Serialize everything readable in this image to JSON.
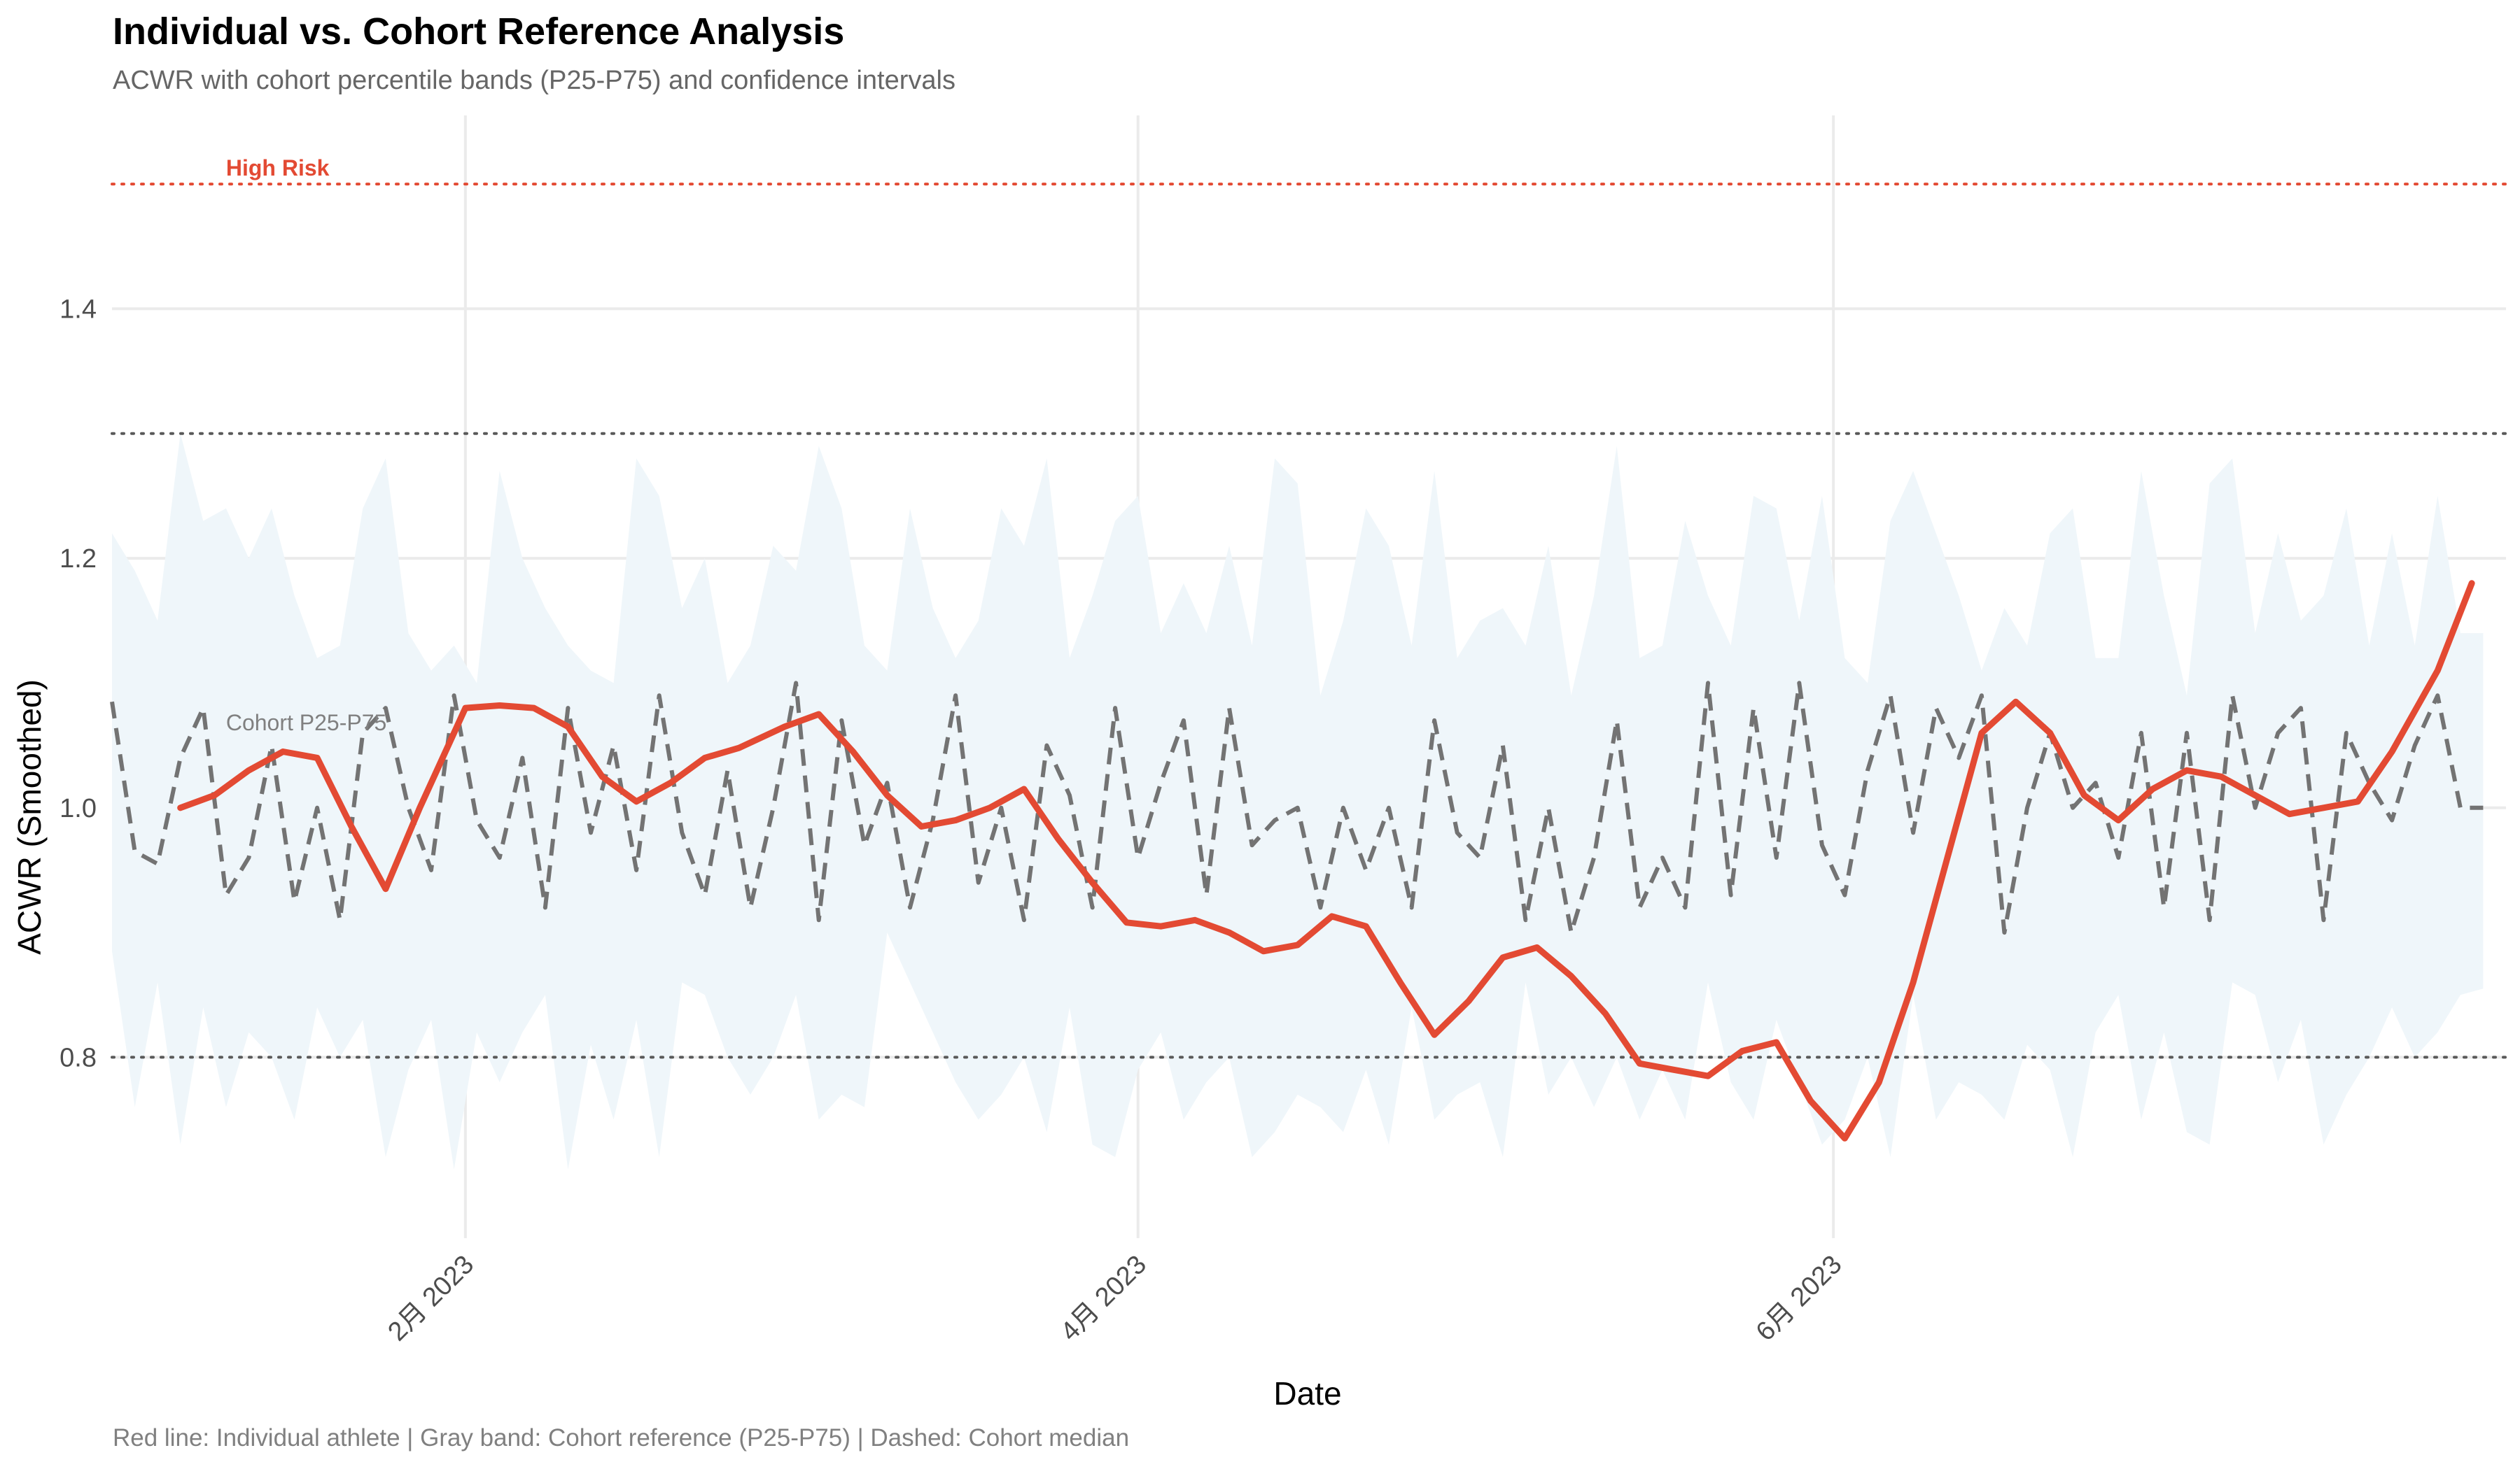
{
  "title": "Individual vs. Cohort Reference Analysis",
  "subtitle": "ACWR with cohort percentile bands (P25-P75) and confidence intervals",
  "caption": "Red line: Individual athlete | Gray band: Cohort reference (P25-P75) | Dashed: Cohort median",
  "colors": {
    "individual": "#e34a33",
    "median": "#737373",
    "band": "#eff6fa",
    "grid": "#ebebeb",
    "high_risk": "#e34a33",
    "threshold": "#595959"
  },
  "chart_data": {
    "type": "line",
    "xlabel": "Date",
    "ylabel": "ACWR (Smoothed)",
    "xlim": [
      "2023-01-01",
      "2023-07-30"
    ],
    "ylim": [
      0.655,
      1.555
    ],
    "grid": true,
    "y_ticks": [
      0.8,
      1.0,
      1.2,
      1.4
    ],
    "y_tick_labels": [
      "0.8",
      "1.0",
      "1.2",
      "1.4"
    ],
    "x_ticks": [
      "2023-02-01",
      "2023-04-01",
      "2023-06-01"
    ],
    "x_tick_labels": [
      "2月 2023",
      "4月 2023",
      "6月 2023"
    ],
    "reference_lines": [
      {
        "y": 1.5,
        "label": "High Risk",
        "style": "dotted",
        "color": "#e34a33"
      },
      {
        "y": 1.3,
        "style": "dotted",
        "color": "#595959"
      },
      {
        "y": 0.8,
        "style": "dotted",
        "color": "#595959"
      }
    ],
    "annotations": [
      {
        "text": "Cohort P25-P75",
        "x": "2023-01-11",
        "y": 1.062
      }
    ],
    "series": [
      {
        "role": "individual",
        "x": [
          "2023-01-07",
          "2023-01-10",
          "2023-01-13",
          "2023-01-16",
          "2023-01-19",
          "2023-01-22",
          "2023-01-25",
          "2023-01-28",
          "2023-02-01",
          "2023-02-04",
          "2023-02-07",
          "2023-02-10",
          "2023-02-13",
          "2023-02-16",
          "2023-02-19",
          "2023-02-22",
          "2023-02-25",
          "2023-03-01",
          "2023-03-04",
          "2023-03-07",
          "2023-03-10",
          "2023-03-13",
          "2023-03-16",
          "2023-03-19",
          "2023-03-22",
          "2023-03-25",
          "2023-03-28",
          "2023-03-31",
          "2023-04-03",
          "2023-04-06",
          "2023-04-09",
          "2023-04-12",
          "2023-04-15",
          "2023-04-18",
          "2023-04-21",
          "2023-04-24",
          "2023-04-27",
          "2023-04-30",
          "2023-05-03",
          "2023-05-06",
          "2023-05-09",
          "2023-05-12",
          "2023-05-15",
          "2023-05-18",
          "2023-05-21",
          "2023-05-24",
          "2023-05-27",
          "2023-05-30",
          "2023-06-02",
          "2023-06-05",
          "2023-06-08",
          "2023-06-11",
          "2023-06-14",
          "2023-06-17",
          "2023-06-20",
          "2023-06-23",
          "2023-06-26",
          "2023-06-29",
          "2023-07-02",
          "2023-07-05",
          "2023-07-08",
          "2023-07-11",
          "2023-07-14",
          "2023-07-17",
          "2023-07-20",
          "2023-07-24",
          "2023-07-27"
        ],
        "values": [
          1.0,
          1.01,
          1.03,
          1.045,
          1.04,
          0.985,
          0.935,
          1.0,
          1.08,
          1.082,
          1.08,
          1.065,
          1.025,
          1.005,
          1.02,
          1.04,
          1.048,
          1.065,
          1.075,
          1.045,
          1.01,
          0.985,
          0.99,
          1.0,
          1.015,
          0.975,
          0.94,
          0.908,
          0.905,
          0.91,
          0.9,
          0.885,
          0.89,
          0.913,
          0.905,
          0.86,
          0.818,
          0.845,
          0.88,
          0.888,
          0.865,
          0.835,
          0.795,
          0.79,
          0.785,
          0.805,
          0.812,
          0.765,
          0.735,
          0.78,
          0.86,
          0.96,
          1.06,
          1.085,
          1.06,
          1.01,
          0.99,
          1.015,
          1.03,
          1.025,
          1.01,
          0.995,
          1.0,
          1.005,
          1.045,
          1.11,
          1.18
        ]
      },
      {
        "role": "cohort_median",
        "x": [
          "2023-01-01",
          "2023-01-03",
          "2023-01-05",
          "2023-01-07",
          "2023-01-09",
          "2023-01-11",
          "2023-01-13",
          "2023-01-15",
          "2023-01-17",
          "2023-01-19",
          "2023-01-21",
          "2023-01-23",
          "2023-01-25",
          "2023-01-27",
          "2023-01-29",
          "2023-01-31",
          "2023-02-02",
          "2023-02-04",
          "2023-02-06",
          "2023-02-08",
          "2023-02-10",
          "2023-02-12",
          "2023-02-14",
          "2023-02-16",
          "2023-02-18",
          "2023-02-20",
          "2023-02-22",
          "2023-02-24",
          "2023-02-26",
          "2023-02-28",
          "2023-03-02",
          "2023-03-04",
          "2023-03-06",
          "2023-03-08",
          "2023-03-10",
          "2023-03-12",
          "2023-03-14",
          "2023-03-16",
          "2023-03-18",
          "2023-03-20",
          "2023-03-22",
          "2023-03-24",
          "2023-03-26",
          "2023-03-28",
          "2023-03-30",
          "2023-04-01",
          "2023-04-03",
          "2023-04-05",
          "2023-04-07",
          "2023-04-09",
          "2023-04-11",
          "2023-04-13",
          "2023-04-15",
          "2023-04-17",
          "2023-04-19",
          "2023-04-21",
          "2023-04-23",
          "2023-04-25",
          "2023-04-27",
          "2023-04-29",
          "2023-05-01",
          "2023-05-03",
          "2023-05-05",
          "2023-05-07",
          "2023-05-09",
          "2023-05-11",
          "2023-05-13",
          "2023-05-15",
          "2023-05-17",
          "2023-05-19",
          "2023-05-21",
          "2023-05-23",
          "2023-05-25",
          "2023-05-27",
          "2023-05-29",
          "2023-05-31",
          "2023-06-02",
          "2023-06-04",
          "2023-06-06",
          "2023-06-08",
          "2023-06-10",
          "2023-06-12",
          "2023-06-14",
          "2023-06-16",
          "2023-06-18",
          "2023-06-20",
          "2023-06-22",
          "2023-06-24",
          "2023-06-26",
          "2023-06-28",
          "2023-06-30",
          "2023-07-02",
          "2023-07-04",
          "2023-07-06",
          "2023-07-08",
          "2023-07-10",
          "2023-07-12",
          "2023-07-14",
          "2023-07-16",
          "2023-07-18",
          "2023-07-20",
          "2023-07-22",
          "2023-07-24",
          "2023-07-26",
          "2023-07-28"
        ],
        "values": [
          1.085,
          0.965,
          0.955,
          1.04,
          1.08,
          0.93,
          0.96,
          1.05,
          0.925,
          1.0,
          0.91,
          1.06,
          1.08,
          1.0,
          0.95,
          1.09,
          0.99,
          0.96,
          1.04,
          0.92,
          1.08,
          0.98,
          1.05,
          0.95,
          1.09,
          0.98,
          0.93,
          1.03,
          0.92,
          1.0,
          1.1,
          0.91,
          1.07,
          0.97,
          1.02,
          0.92,
          0.99,
          1.09,
          0.94,
          1.0,
          0.91,
          1.05,
          1.01,
          0.92,
          1.08,
          0.96,
          1.02,
          1.07,
          0.93,
          1.08,
          0.97,
          0.99,
          1.0,
          0.92,
          1.0,
          0.95,
          1.0,
          0.92,
          1.07,
          0.98,
          0.96,
          1.05,
          0.91,
          1.0,
          0.9,
          0.96,
          1.07,
          0.92,
          0.96,
          0.92,
          1.1,
          0.93,
          1.08,
          0.96,
          1.1,
          0.97,
          0.93,
          1.03,
          1.09,
          0.98,
          1.08,
          1.04,
          1.09,
          0.9,
          1.0,
          1.06,
          1.0,
          1.02,
          0.96,
          1.06,
          0.92,
          1.06,
          0.91,
          1.09,
          1.0,
          1.06,
          1.08,
          0.91,
          1.06,
          1.02,
          0.99,
          1.05,
          1.09,
          1.0,
          1.0
        ]
      },
      {
        "role": "cohort_band",
        "x": [
          "2023-01-01",
          "2023-01-03",
          "2023-01-05",
          "2023-01-07",
          "2023-01-09",
          "2023-01-11",
          "2023-01-13",
          "2023-01-15",
          "2023-01-17",
          "2023-01-19",
          "2023-01-21",
          "2023-01-23",
          "2023-01-25",
          "2023-01-27",
          "2023-01-29",
          "2023-01-31",
          "2023-02-02",
          "2023-02-04",
          "2023-02-06",
          "2023-02-08",
          "2023-02-10",
          "2023-02-12",
          "2023-02-14",
          "2023-02-16",
          "2023-02-18",
          "2023-02-20",
          "2023-02-22",
          "2023-02-24",
          "2023-02-26",
          "2023-02-28",
          "2023-03-02",
          "2023-03-04",
          "2023-03-06",
          "2023-03-08",
          "2023-03-10",
          "2023-03-12",
          "2023-03-14",
          "2023-03-16",
          "2023-03-18",
          "2023-03-20",
          "2023-03-22",
          "2023-03-24",
          "2023-03-26",
          "2023-03-28",
          "2023-03-30",
          "2023-04-01",
          "2023-04-03",
          "2023-04-05",
          "2023-04-07",
          "2023-04-09",
          "2023-04-11",
          "2023-04-13",
          "2023-04-15",
          "2023-04-17",
          "2023-04-19",
          "2023-04-21",
          "2023-04-23",
          "2023-04-25",
          "2023-04-27",
          "2023-04-29",
          "2023-05-01",
          "2023-05-03",
          "2023-05-05",
          "2023-05-07",
          "2023-05-09",
          "2023-05-11",
          "2023-05-13",
          "2023-05-15",
          "2023-05-17",
          "2023-05-19",
          "2023-05-21",
          "2023-05-23",
          "2023-05-25",
          "2023-05-27",
          "2023-05-29",
          "2023-05-31",
          "2023-06-02",
          "2023-06-04",
          "2023-06-06",
          "2023-06-08",
          "2023-06-10",
          "2023-06-12",
          "2023-06-14",
          "2023-06-16",
          "2023-06-18",
          "2023-06-20",
          "2023-06-22",
          "2023-06-24",
          "2023-06-26",
          "2023-06-28",
          "2023-06-30",
          "2023-07-02",
          "2023-07-04",
          "2023-07-06",
          "2023-07-08",
          "2023-07-10",
          "2023-07-12",
          "2023-07-14",
          "2023-07-16",
          "2023-07-18",
          "2023-07-20",
          "2023-07-22",
          "2023-07-24",
          "2023-07-26",
          "2023-07-28"
        ],
        "lower": [
          0.885,
          0.76,
          0.86,
          0.73,
          0.84,
          0.76,
          0.82,
          0.8,
          0.75,
          0.84,
          0.8,
          0.83,
          0.72,
          0.79,
          0.83,
          0.71,
          0.82,
          0.78,
          0.82,
          0.85,
          0.71,
          0.81,
          0.75,
          0.83,
          0.72,
          0.86,
          0.85,
          0.8,
          0.77,
          0.8,
          0.85,
          0.75,
          0.77,
          0.76,
          0.9,
          0.86,
          0.82,
          0.78,
          0.75,
          0.77,
          0.8,
          0.74,
          0.84,
          0.73,
          0.72,
          0.79,
          0.82,
          0.75,
          0.78,
          0.8,
          0.72,
          0.74,
          0.77,
          0.76,
          0.74,
          0.79,
          0.73,
          0.84,
          0.75,
          0.77,
          0.78,
          0.72,
          0.86,
          0.77,
          0.8,
          0.76,
          0.8,
          0.75,
          0.79,
          0.75,
          0.86,
          0.78,
          0.75,
          0.83,
          0.78,
          0.73,
          0.75,
          0.8,
          0.72,
          0.85,
          0.75,
          0.78,
          0.77,
          0.75,
          0.81,
          0.79,
          0.72,
          0.82,
          0.85,
          0.75,
          0.82,
          0.74,
          0.73,
          0.86,
          0.85,
          0.78,
          0.83,
          0.73,
          0.77,
          0.8,
          0.84,
          0.8,
          0.82,
          0.85,
          0.855
        ],
        "upper": [
          1.22,
          1.19,
          1.15,
          1.3,
          1.23,
          1.24,
          1.2,
          1.24,
          1.17,
          1.12,
          1.13,
          1.24,
          1.28,
          1.14,
          1.11,
          1.13,
          1.1,
          1.27,
          1.2,
          1.16,
          1.13,
          1.11,
          1.1,
          1.28,
          1.25,
          1.16,
          1.2,
          1.1,
          1.13,
          1.21,
          1.19,
          1.29,
          1.24,
          1.13,
          1.11,
          1.24,
          1.16,
          1.12,
          1.15,
          1.24,
          1.21,
          1.28,
          1.12,
          1.17,
          1.23,
          1.25,
          1.14,
          1.18,
          1.14,
          1.21,
          1.13,
          1.28,
          1.26,
          1.09,
          1.15,
          1.24,
          1.21,
          1.13,
          1.27,
          1.12,
          1.15,
          1.16,
          1.13,
          1.21,
          1.09,
          1.17,
          1.29,
          1.12,
          1.13,
          1.23,
          1.17,
          1.13,
          1.25,
          1.24,
          1.15,
          1.25,
          1.12,
          1.1,
          1.23,
          1.27,
          1.22,
          1.17,
          1.11,
          1.16,
          1.13,
          1.22,
          1.24,
          1.12,
          1.12,
          1.27,
          1.17,
          1.09,
          1.26,
          1.28,
          1.14,
          1.22,
          1.15,
          1.17,
          1.24,
          1.13,
          1.22,
          1.13,
          1.25,
          1.14,
          1.14
        ]
      }
    ]
  }
}
